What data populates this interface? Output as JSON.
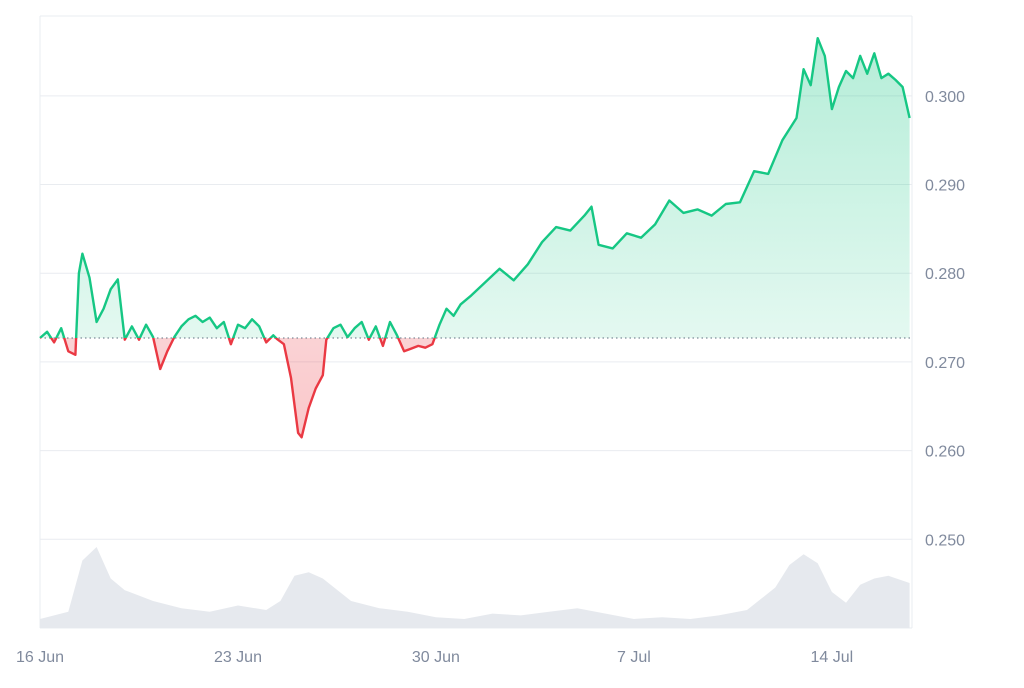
{
  "chart_data": {
    "type": "line",
    "title": "",
    "xlabel": "",
    "ylabel": "",
    "baseline": 0.2727,
    "ylim": [
      0.24,
      0.309
    ],
    "xlim": [
      "2024-06-16",
      "2024-07-16"
    ],
    "x_ticks": [
      {
        "date": "2024-06-16",
        "label": "16 Jun"
      },
      {
        "date": "2024-06-23",
        "label": "23 Jun"
      },
      {
        "date": "2024-06-30",
        "label": "30 Jun"
      },
      {
        "date": "2024-07-07",
        "label": "7 Jul"
      },
      {
        "date": "2024-07-14",
        "label": "14 Jul"
      }
    ],
    "y_ticks": [
      {
        "value": 0.3,
        "label": "0.300"
      },
      {
        "value": 0.29,
        "label": "0.290"
      },
      {
        "value": 0.28,
        "label": "0.280"
      },
      {
        "value": 0.27,
        "label": "0.270"
      },
      {
        "value": 0.26,
        "label": "0.260"
      },
      {
        "value": 0.25,
        "label": "0.250"
      }
    ],
    "colors": {
      "up": "#16c784",
      "down": "#ea3943",
      "volume": "#e6e9ee",
      "grid": "#e9ecf0",
      "axis_text": "#808a9d"
    },
    "price_series": [
      [
        "2024-06-16T00:00",
        0.2727
      ],
      [
        "2024-06-16T06:00",
        0.2734
      ],
      [
        "2024-06-16T12:00",
        0.2722
      ],
      [
        "2024-06-16T18:00",
        0.2738
      ],
      [
        "2024-06-17T00:00",
        0.2712
      ],
      [
        "2024-06-17T06:00",
        0.2708
      ],
      [
        "2024-06-17T09:00",
        0.28
      ],
      [
        "2024-06-17T12:00",
        0.2822
      ],
      [
        "2024-06-17T18:00",
        0.2795
      ],
      [
        "2024-06-18T00:00",
        0.2745
      ],
      [
        "2024-06-18T06:00",
        0.276
      ],
      [
        "2024-06-18T12:00",
        0.2782
      ],
      [
        "2024-06-18T18:00",
        0.2793
      ],
      [
        "2024-06-19T00:00",
        0.2725
      ],
      [
        "2024-06-19T06:00",
        0.274
      ],
      [
        "2024-06-19T12:00",
        0.2725
      ],
      [
        "2024-06-19T18:00",
        0.2742
      ],
      [
        "2024-06-20T00:00",
        0.2728
      ],
      [
        "2024-06-20T06:00",
        0.2692
      ],
      [
        "2024-06-20T12:00",
        0.2712
      ],
      [
        "2024-06-20T18:00",
        0.2728
      ],
      [
        "2024-06-21T00:00",
        0.274
      ],
      [
        "2024-06-21T06:00",
        0.2748
      ],
      [
        "2024-06-21T12:00",
        0.2752
      ],
      [
        "2024-06-21T18:00",
        0.2745
      ],
      [
        "2024-06-22T00:00",
        0.275
      ],
      [
        "2024-06-22T06:00",
        0.2738
      ],
      [
        "2024-06-22T12:00",
        0.2745
      ],
      [
        "2024-06-22T18:00",
        0.272
      ],
      [
        "2024-06-23T00:00",
        0.2742
      ],
      [
        "2024-06-23T06:00",
        0.2738
      ],
      [
        "2024-06-23T12:00",
        0.2748
      ],
      [
        "2024-06-23T18:00",
        0.274
      ],
      [
        "2024-06-24T00:00",
        0.2722
      ],
      [
        "2024-06-24T06:00",
        0.273
      ],
      [
        "2024-06-24T09:00",
        0.2726
      ],
      [
        "2024-06-24T15:00",
        0.272
      ],
      [
        "2024-06-24T21:00",
        0.2682
      ],
      [
        "2024-06-25T03:00",
        0.262
      ],
      [
        "2024-06-25T06:00",
        0.2615
      ],
      [
        "2024-06-25T12:00",
        0.2648
      ],
      [
        "2024-06-25T18:00",
        0.267
      ],
      [
        "2024-06-26T00:00",
        0.2685
      ],
      [
        "2024-06-26T03:00",
        0.2725
      ],
      [
        "2024-06-26T09:00",
        0.2738
      ],
      [
        "2024-06-26T15:00",
        0.2742
      ],
      [
        "2024-06-26T21:00",
        0.2728
      ],
      [
        "2024-06-27T03:00",
        0.2738
      ],
      [
        "2024-06-27T09:00",
        0.2745
      ],
      [
        "2024-06-27T15:00",
        0.2725
      ],
      [
        "2024-06-27T21:00",
        0.274
      ],
      [
        "2024-06-28T03:00",
        0.2718
      ],
      [
        "2024-06-28T09:00",
        0.2745
      ],
      [
        "2024-06-28T15:00",
        0.273
      ],
      [
        "2024-06-28T21:00",
        0.2712
      ],
      [
        "2024-06-29T03:00",
        0.2715
      ],
      [
        "2024-06-29T09:00",
        0.2718
      ],
      [
        "2024-06-29T15:00",
        0.2716
      ],
      [
        "2024-06-29T21:00",
        0.272
      ],
      [
        "2024-06-30T03:00",
        0.2742
      ],
      [
        "2024-06-30T09:00",
        0.276
      ],
      [
        "2024-06-30T15:00",
        0.2752
      ],
      [
        "2024-06-30T21:00",
        0.2765
      ],
      [
        "2024-07-01T06:00",
        0.2775
      ],
      [
        "2024-07-01T18:00",
        0.279
      ],
      [
        "2024-07-02T06:00",
        0.2805
      ],
      [
        "2024-07-02T18:00",
        0.2792
      ],
      [
        "2024-07-03T06:00",
        0.281
      ],
      [
        "2024-07-03T18:00",
        0.2835
      ],
      [
        "2024-07-04T06:00",
        0.2852
      ],
      [
        "2024-07-04T18:00",
        0.2848
      ],
      [
        "2024-07-05T06:00",
        0.2865
      ],
      [
        "2024-07-05T12:00",
        0.2875
      ],
      [
        "2024-07-05T18:00",
        0.2832
      ],
      [
        "2024-07-06T06:00",
        0.2828
      ],
      [
        "2024-07-06T18:00",
        0.2845
      ],
      [
        "2024-07-07T06:00",
        0.284
      ],
      [
        "2024-07-07T18:00",
        0.2855
      ],
      [
        "2024-07-08T06:00",
        0.2882
      ],
      [
        "2024-07-08T18:00",
        0.2868
      ],
      [
        "2024-07-09T06:00",
        0.2872
      ],
      [
        "2024-07-09T18:00",
        0.2865
      ],
      [
        "2024-07-10T06:00",
        0.2878
      ],
      [
        "2024-07-10T18:00",
        0.288
      ],
      [
        "2024-07-11T06:00",
        0.2915
      ],
      [
        "2024-07-11T18:00",
        0.2912
      ],
      [
        "2024-07-12T06:00",
        0.295
      ],
      [
        "2024-07-12T18:00",
        0.2975
      ],
      [
        "2024-07-13T00:00",
        0.303
      ],
      [
        "2024-07-13T06:00",
        0.3012
      ],
      [
        "2024-07-13T12:00",
        0.3065
      ],
      [
        "2024-07-13T18:00",
        0.3045
      ],
      [
        "2024-07-14T00:00",
        0.2985
      ],
      [
        "2024-07-14T06:00",
        0.301
      ],
      [
        "2024-07-14T12:00",
        0.3028
      ],
      [
        "2024-07-14T18:00",
        0.302
      ],
      [
        "2024-07-15T00:00",
        0.3045
      ],
      [
        "2024-07-15T06:00",
        0.3025
      ],
      [
        "2024-07-15T12:00",
        0.3048
      ],
      [
        "2024-07-15T18:00",
        0.302
      ],
      [
        "2024-07-16T00:00",
        0.3025
      ],
      [
        "2024-07-16T06:00",
        0.3018
      ],
      [
        "2024-07-16T12:00",
        0.301
      ],
      [
        "2024-07-16T18:00",
        0.2975
      ]
    ],
    "volume_series": [
      [
        "2024-06-16",
        0.1
      ],
      [
        "2024-06-17",
        0.18
      ],
      [
        "2024-06-17T12:00",
        0.75
      ],
      [
        "2024-06-18",
        0.9
      ],
      [
        "2024-06-18T12:00",
        0.55
      ],
      [
        "2024-06-19",
        0.42
      ],
      [
        "2024-06-20",
        0.3
      ],
      [
        "2024-06-21",
        0.22
      ],
      [
        "2024-06-22",
        0.18
      ],
      [
        "2024-06-23",
        0.25
      ],
      [
        "2024-06-24",
        0.2
      ],
      [
        "2024-06-24T12:00",
        0.3
      ],
      [
        "2024-06-25",
        0.58
      ],
      [
        "2024-06-25T12:00",
        0.62
      ],
      [
        "2024-06-26",
        0.55
      ],
      [
        "2024-06-27",
        0.3
      ],
      [
        "2024-06-28",
        0.22
      ],
      [
        "2024-06-29",
        0.18
      ],
      [
        "2024-06-30",
        0.12
      ],
      [
        "2024-07-01",
        0.1
      ],
      [
        "2024-07-02",
        0.16
      ],
      [
        "2024-07-03",
        0.14
      ],
      [
        "2024-07-04",
        0.18
      ],
      [
        "2024-07-05",
        0.22
      ],
      [
        "2024-07-06",
        0.16
      ],
      [
        "2024-07-07",
        0.1
      ],
      [
        "2024-07-08",
        0.12
      ],
      [
        "2024-07-09",
        0.1
      ],
      [
        "2024-07-10",
        0.14
      ],
      [
        "2024-07-11",
        0.2
      ],
      [
        "2024-07-12",
        0.45
      ],
      [
        "2024-07-12T12:00",
        0.7
      ],
      [
        "2024-07-13",
        0.82
      ],
      [
        "2024-07-13T12:00",
        0.72
      ],
      [
        "2024-07-14",
        0.4
      ],
      [
        "2024-07-14T12:00",
        0.28
      ],
      [
        "2024-07-15",
        0.48
      ],
      [
        "2024-07-15T12:00",
        0.55
      ],
      [
        "2024-07-16",
        0.58
      ],
      [
        "2024-07-16T18:00",
        0.5
      ]
    ]
  }
}
